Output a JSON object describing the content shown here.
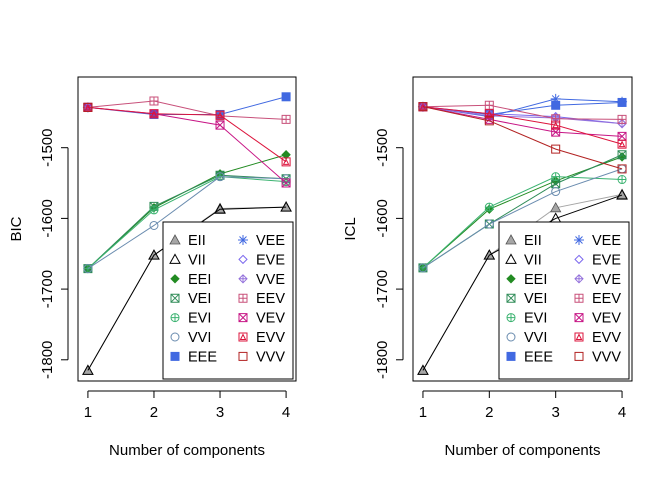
{
  "figure": {
    "description_shown": false
  },
  "chart_data": [
    {
      "type": "line",
      "ylabel": "BIC",
      "xlabel": "Number of components",
      "x": [
        1,
        2,
        3,
        4
      ],
      "xlim": [
        0.85,
        4.15
      ],
      "ylim": [
        -1830,
        -1400
      ],
      "yticks": [
        -1800,
        -1700,
        -1600,
        -1500
      ],
      "ytick_labels": [
        "-1800",
        "-1700",
        "-1600",
        "-1500"
      ],
      "xtick_labels": [
        "1",
        "2",
        "3",
        "4"
      ],
      "legend_position": "bottom-right",
      "series": [
        {
          "name": "EII",
          "values": [
            -1815,
            -1652,
            -1586,
            -1584
          ],
          "color": "#a6a6a6",
          "marker": "triangle-filled"
        },
        {
          "name": "VII",
          "values": [
            -1815,
            -1652,
            -1587,
            -1584
          ],
          "color": "#000000",
          "marker": "triangle-open"
        },
        {
          "name": "EEI",
          "values": [
            -1671,
            -1585,
            -1537,
            -1510
          ],
          "color": "#228b22",
          "marker": "diamond-filled"
        },
        {
          "name": "VEI",
          "values": [
            -1671,
            -1583,
            -1539,
            -1544
          ],
          "color": "#2e8b57",
          "marker": "square-x"
        },
        {
          "name": "EVI",
          "values": [
            -1671,
            -1588,
            -1541,
            -1548
          ],
          "color": "#3cb371",
          "marker": "circle-plus"
        },
        {
          "name": "VVI",
          "values": [
            -1671,
            -1610,
            -1541,
            -1544
          ],
          "color": "#6a8caf",
          "marker": "circle-open"
        },
        {
          "name": "EEE",
          "values": [
            -1443,
            -1453,
            -1453,
            -1428
          ],
          "color": "#4169e1",
          "marker": "square-filled"
        },
        {
          "name": "VEE",
          "values": [
            -1443,
            null,
            null,
            null
          ],
          "color": "#4169e1",
          "marker": "asterisk"
        },
        {
          "name": "EVE",
          "values": [
            -1443,
            null,
            null,
            null
          ],
          "color": "#7b68ee",
          "marker": "diamond-open"
        },
        {
          "name": "VVE",
          "values": [
            -1443,
            null,
            null,
            null
          ],
          "color": "#9370db",
          "marker": "diamond-plus"
        },
        {
          "name": "EEV",
          "values": [
            -1443,
            -1434,
            -1455,
            -1460
          ],
          "color": "#c8507a",
          "marker": "square-plus"
        },
        {
          "name": "VEV",
          "values": [
            -1443,
            -1452,
            -1468,
            -1550
          ],
          "color": "#c71585",
          "marker": "square-x"
        },
        {
          "name": "EVV",
          "values": [
            -1443,
            -1452,
            -1454,
            -1520
          ],
          "color": "#dc143c",
          "marker": "triangle-box"
        },
        {
          "name": "VVV",
          "values": [
            -1443,
            null,
            null,
            null
          ],
          "color": "#b22222",
          "marker": "square-open"
        }
      ]
    },
    {
      "type": "line",
      "ylabel": "ICL",
      "xlabel": "Number of components",
      "x": [
        1,
        2,
        3,
        4
      ],
      "xlim": [
        0.85,
        4.15
      ],
      "ylim": [
        -1830,
        -1400
      ],
      "yticks": [
        -1800,
        -1700,
        -1600,
        -1500
      ],
      "ytick_labels": [
        "-1800",
        "-1700",
        "-1600",
        "-1500"
      ],
      "xtick_labels": [
        "1",
        "2",
        "3",
        "4"
      ],
      "legend_position": "bottom-right",
      "series": [
        {
          "name": "EII",
          "values": [
            -1815,
            -1652,
            -1585,
            -1566
          ],
          "color": "#a6a6a6",
          "marker": "triangle-filled"
        },
        {
          "name": "VII",
          "values": [
            -1815,
            -1652,
            -1600,
            -1567
          ],
          "color": "#000000",
          "marker": "triangle-open"
        },
        {
          "name": "EEI",
          "values": [
            -1670,
            -1587,
            -1547,
            -1513
          ],
          "color": "#228b22",
          "marker": "diamond-filled"
        },
        {
          "name": "VEI",
          "values": [
            -1670,
            -1608,
            -1551,
            -1510
          ],
          "color": "#2e8b57",
          "marker": "square-x"
        },
        {
          "name": "EVI",
          "values": [
            -1670,
            -1584,
            -1541,
            -1545
          ],
          "color": "#3cb371",
          "marker": "circle-plus"
        },
        {
          "name": "VVI",
          "values": [
            -1670,
            -1608,
            -1562,
            -1530
          ],
          "color": "#6a8caf",
          "marker": "circle-open"
        },
        {
          "name": "EEE",
          "values": [
            -1442,
            -1453,
            -1440,
            -1436
          ],
          "color": "#4169e1",
          "marker": "square-filled"
        },
        {
          "name": "VEE",
          "values": [
            -1442,
            -1456,
            -1431,
            -1435
          ],
          "color": "#4169e1",
          "marker": "asterisk"
        },
        {
          "name": "EVE",
          "values": [
            -1442,
            -1452,
            -1456,
            -1466
          ],
          "color": "#7b68ee",
          "marker": "diamond-open"
        },
        {
          "name": "VVE",
          "values": [
            -1442,
            -1455,
            -1458,
            -1466
          ],
          "color": "#9370db",
          "marker": "diamond-plus"
        },
        {
          "name": "EEV",
          "values": [
            -1442,
            -1440,
            -1459,
            -1460
          ],
          "color": "#c8507a",
          "marker": "square-plus"
        },
        {
          "name": "VEV",
          "values": [
            -1442,
            -1460,
            -1478,
            -1484
          ],
          "color": "#c71585",
          "marker": "square-x"
        },
        {
          "name": "EVV",
          "values": [
            -1442,
            -1452,
            -1468,
            -1495
          ],
          "color": "#dc143c",
          "marker": "triangle-box"
        },
        {
          "name": "VVV",
          "values": [
            -1442,
            -1462,
            -1502,
            -1530
          ],
          "color": "#b22222",
          "marker": "square-open"
        }
      ]
    }
  ]
}
